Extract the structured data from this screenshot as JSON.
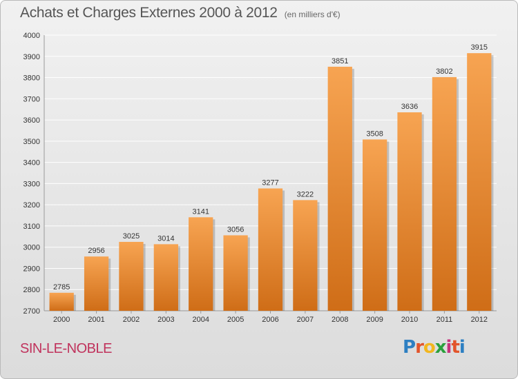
{
  "header": {
    "title": "Achats et Charges Externes 2000 à 2012",
    "subtitle": "(en milliers d'€)"
  },
  "footer": {
    "town": "SIN-LE-NOBLE",
    "logo_letters": [
      "P",
      "r",
      "o",
      "x",
      "i",
      "t",
      "i"
    ],
    "logo_colors": [
      "#2d7fc2",
      "#e2542b",
      "#f2b61f",
      "#2aa03c",
      "#c7327c",
      "#e2542b",
      "#2d7fc2"
    ]
  },
  "colors": {
    "bar_top": "#f7a452",
    "bar_bottom": "#cf6d17",
    "grid": "#ffffff",
    "axis_text": "#333333",
    "label_text": "#333333"
  },
  "chart_data": {
    "type": "bar",
    "title": "Achats et Charges Externes 2000 à 2012",
    "subtitle": "(en milliers d'€)",
    "categories": [
      "2000",
      "2001",
      "2002",
      "2003",
      "2004",
      "2005",
      "2006",
      "2007",
      "2008",
      "2009",
      "2010",
      "2011",
      "2012"
    ],
    "values": [
      2785,
      2956,
      3025,
      3014,
      3141,
      3056,
      3277,
      3222,
      3851,
      3508,
      3636,
      3802,
      3915
    ],
    "ylim": [
      2700,
      4000
    ],
    "yticks": [
      2700,
      2800,
      2900,
      3000,
      3100,
      3200,
      3300,
      3400,
      3500,
      3600,
      3700,
      3800,
      3900,
      4000
    ],
    "grid": true,
    "data_labels": true
  }
}
